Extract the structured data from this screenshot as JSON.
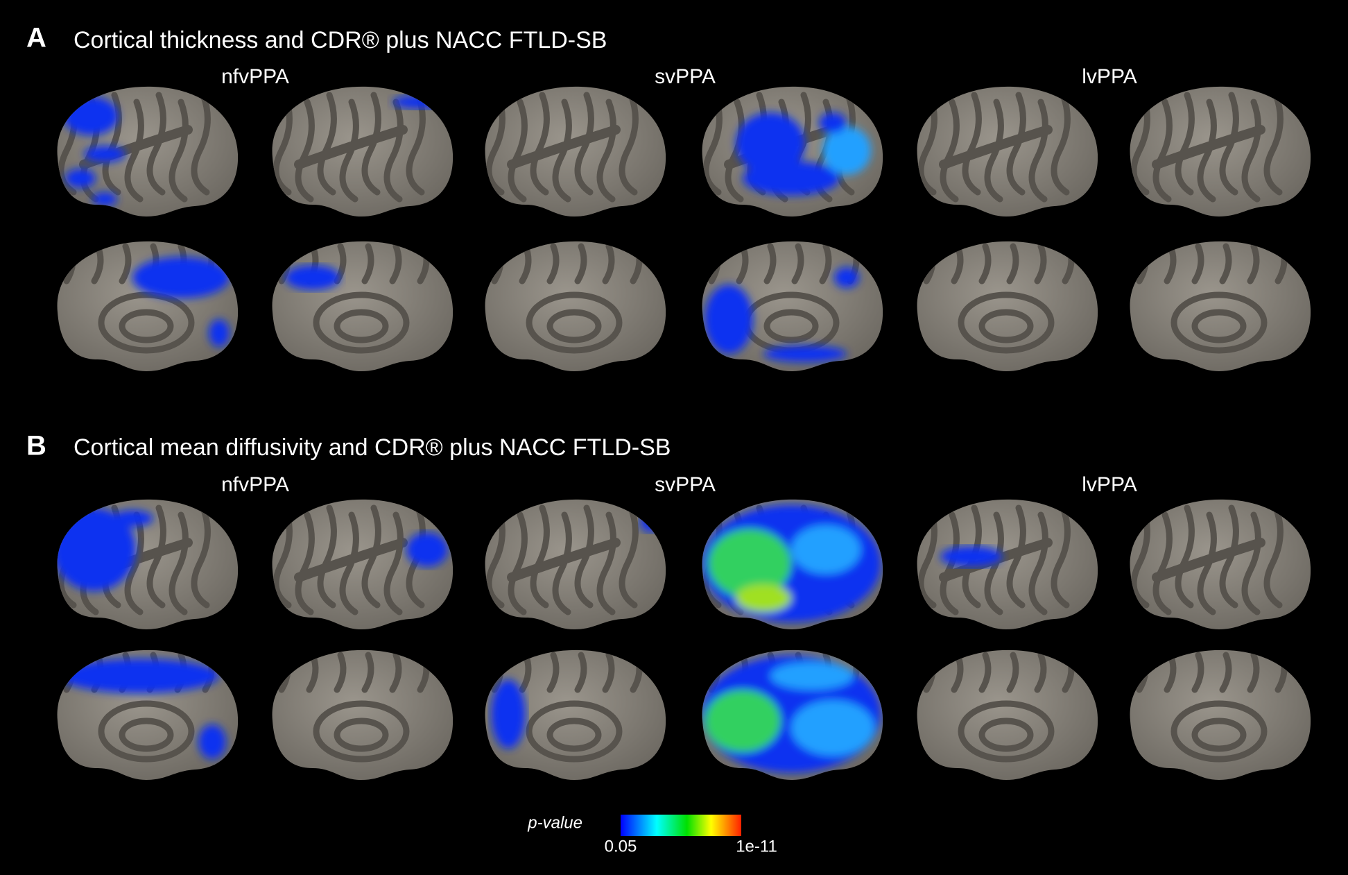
{
  "panels": [
    {
      "letter": "A",
      "title": "Cortical thickness and CDR® plus NACC FTLD-SB",
      "groups": [
        "nfvPPA",
        "svPPA",
        "lvPPA"
      ]
    },
    {
      "letter": "B",
      "title": "Cortical mean diffusivity and CDR® plus NACC FTLD-SB",
      "groups": [
        "nfvPPA",
        "svPPA",
        "lvPPA"
      ]
    }
  ],
  "colorbar": {
    "label": "p-value",
    "min_label": "0.05",
    "max_label": "1e-11"
  }
}
